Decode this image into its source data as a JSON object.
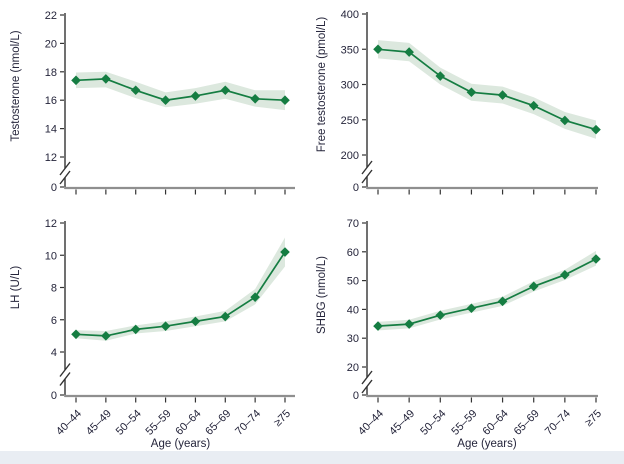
{
  "figure": {
    "description": "Four-panel line chart figure: hormone concentrations by age group with shaded confidence bands",
    "x_axis_label": "Age (years)"
  },
  "colors": {
    "line": "#157d42",
    "marker": "#157d42",
    "band": "#dce8de",
    "text": "#25253b",
    "y_axis": "#333333",
    "x_axis": "#8f8f8f",
    "page_edge": "#e9edf3",
    "background": "#ffffff"
  },
  "chart_data": [
    {
      "type": "line",
      "panel": "top-left",
      "title": "",
      "ylabel": "Testosterone (nmol/L)",
      "xlabel": "",
      "legend_position": "none",
      "marker": "diamond",
      "grid": false,
      "y_axis_break": true,
      "y_zero_label": "0",
      "show_x_tick_labels": false,
      "y_ticks": [
        22,
        20,
        18,
        16,
        14,
        12
      ],
      "ylim_labeled": [
        12,
        22
      ],
      "categories": [
        "40–44",
        "45–49",
        "50–54",
        "55–59",
        "60–64",
        "65–69",
        "70–74",
        "≥75"
      ],
      "values": [
        17.4,
        17.5,
        16.7,
        16.0,
        16.3,
        16.7,
        16.1,
        16.0
      ],
      "band_lower": [
        16.85,
        16.9,
        16.15,
        15.5,
        15.75,
        16.1,
        15.55,
        15.3
      ],
      "band_upper": [
        17.95,
        18.0,
        17.3,
        16.55,
        16.85,
        17.3,
        16.7,
        16.7
      ]
    },
    {
      "type": "line",
      "panel": "top-right",
      "title": "",
      "ylabel": "Free testosterone (pmol/L)",
      "xlabel": "",
      "legend_position": "none",
      "marker": "diamond",
      "grid": false,
      "y_axis_break": true,
      "y_zero_label": "0",
      "show_x_tick_labels": false,
      "y_ticks": [
        400,
        350,
        300,
        250,
        200
      ],
      "ylim_labeled": [
        200,
        400
      ],
      "categories": [
        "40–44",
        "45–49",
        "50–54",
        "55–59",
        "60–64",
        "65–69",
        "70–74",
        "≥75"
      ],
      "values": [
        350,
        346,
        312,
        289,
        285,
        270,
        249,
        236
      ],
      "band_lower": [
        337,
        333,
        300,
        277,
        273,
        258,
        237,
        223
      ],
      "band_upper": [
        363,
        359,
        324,
        301,
        297,
        282,
        261,
        249
      ]
    },
    {
      "type": "line",
      "panel": "bottom-left",
      "title": "",
      "ylabel": "LH (U/L)",
      "xlabel": "Age (years)",
      "legend_position": "none",
      "marker": "diamond",
      "grid": false,
      "y_axis_break": true,
      "y_zero_label": "0",
      "show_x_tick_labels": true,
      "y_ticks": [
        12,
        10,
        8,
        6,
        4
      ],
      "ylim_labeled": [
        4,
        12
      ],
      "categories": [
        "40–44",
        "45–49",
        "50–54",
        "55–59",
        "60–64",
        "65–69",
        "70–74",
        "≥75"
      ],
      "values": [
        5.1,
        5.0,
        5.4,
        5.6,
        5.9,
        6.2,
        7.4,
        10.2
      ],
      "band_lower": [
        4.85,
        4.7,
        5.15,
        5.3,
        5.6,
        5.9,
        6.95,
        9.3
      ],
      "band_upper": [
        5.35,
        5.3,
        5.65,
        5.9,
        6.2,
        6.55,
        7.9,
        11.1
      ]
    },
    {
      "type": "line",
      "panel": "bottom-right",
      "title": "",
      "ylabel": "SHBG (nmol/L)",
      "xlabel": "Age (years)",
      "legend_position": "none",
      "marker": "diamond",
      "grid": false,
      "y_axis_break": true,
      "y_zero_label": "0",
      "show_x_tick_labels": true,
      "y_ticks": [
        70,
        60,
        50,
        40,
        30,
        20
      ],
      "ylim_labeled": [
        20,
        70
      ],
      "categories": [
        "40–44",
        "45–49",
        "50–54",
        "55–59",
        "60–64",
        "65–69",
        "70–74",
        "≥75"
      ],
      "values": [
        34.2,
        34.9,
        38.0,
        40.4,
        42.8,
        48.0,
        52.0,
        57.5
      ],
      "band_lower": [
        32.7,
        33.4,
        36.5,
        38.9,
        41.2,
        46.2,
        50.2,
        55.2
      ],
      "band_upper": [
        35.7,
        36.4,
        39.5,
        41.9,
        44.4,
        49.8,
        53.8,
        60.3
      ]
    }
  ]
}
